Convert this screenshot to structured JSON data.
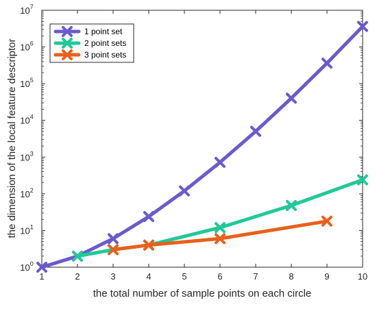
{
  "chart_data": {
    "type": "line",
    "title": "",
    "xlabel": "the total number of sample points on each circle",
    "ylabel": "the dimension of the local feature descriptor",
    "xlim": [
      1,
      10
    ],
    "ylim": [
      1,
      10000000
    ],
    "yscale": "log",
    "x_ticks": [
      "1",
      "2",
      "3",
      "4",
      "5",
      "6",
      "7",
      "8",
      "9",
      "10"
    ],
    "y_tick_exponents": [
      "0",
      "1",
      "2",
      "3",
      "4",
      "5",
      "6",
      "7"
    ],
    "y_tick_base": "10",
    "grid": false,
    "legend_position": "top-left",
    "series": [
      {
        "name": "1 point set",
        "color": "#6A5ACD",
        "marker": "x",
        "x": [
          1,
          2,
          3,
          4,
          5,
          6,
          7,
          8,
          9,
          10
        ],
        "y": [
          1,
          2,
          6,
          24,
          120,
          720,
          5040,
          40320,
          362880,
          3628800
        ]
      },
      {
        "name": "2 point sets",
        "color": "#20C997",
        "marker": "x",
        "x": [
          2,
          3,
          4,
          6,
          8,
          10
        ],
        "y": [
          2,
          3,
          4,
          12,
          48,
          240
        ]
      },
      {
        "name": "3 point sets",
        "color": "#E8601C",
        "marker": "x",
        "x": [
          3,
          4,
          6,
          9
        ],
        "y": [
          3,
          4,
          6,
          18
        ]
      }
    ]
  }
}
